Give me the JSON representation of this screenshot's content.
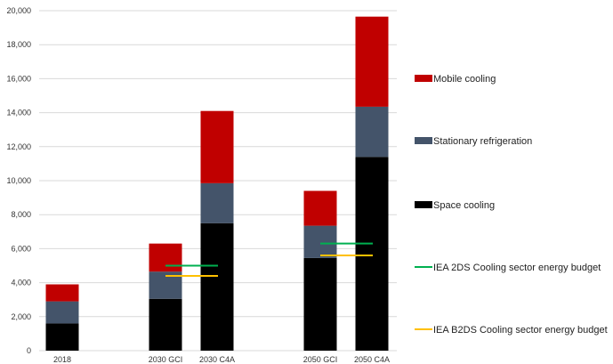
{
  "chart_data": {
    "type": "bar",
    "stacked": true,
    "categories": [
      "2018",
      "2030 GCI",
      "2030 C4A",
      "2050 GCI",
      "2050 C4A"
    ],
    "ylim": [
      0,
      20000
    ],
    "yticks": [
      "0",
      "2,000",
      "4,000",
      "6,000",
      "8,000",
      "10,000",
      "12,000",
      "14,000",
      "16,000",
      "18,000",
      "20,000"
    ],
    "grid": true,
    "legend_position": "right",
    "series": [
      {
        "name": "Space cooling",
        "color": "#000000",
        "values": [
          1600,
          3050,
          7500,
          5450,
          11400
        ]
      },
      {
        "name": "Stationary refrigeration",
        "color": "#44546a",
        "values": [
          1300,
          1600,
          2350,
          1900,
          2950
        ]
      },
      {
        "name": "Mobile cooling",
        "color": "#c00000",
        "values": [
          1000,
          1650,
          4250,
          2050,
          5300
        ]
      }
    ],
    "lines": [
      {
        "name": "IEA 2DS Cooling sector energy budget",
        "color": "#00b050",
        "values": [
          null,
          5000,
          null,
          6300,
          null
        ]
      },
      {
        "name": "IEA B2DS Cooling sector energy budget",
        "color": "#ffc000",
        "values": [
          null,
          4400,
          null,
          5600,
          null
        ]
      }
    ],
    "legend_order": [
      "Mobile cooling",
      "Stationary refrigeration",
      "Space cooling",
      "IEA 2DS Cooling sector energy budget",
      "IEA B2DS Cooling sector energy budget"
    ]
  }
}
